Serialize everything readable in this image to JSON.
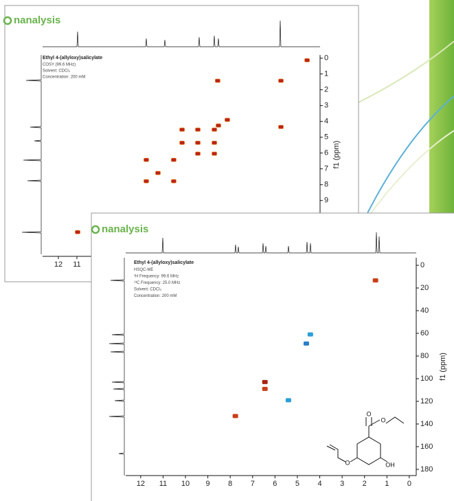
{
  "chart_data": [
    {
      "type": "scatter",
      "brand": "nanalysis",
      "title": "Ethyl 4-(allyloxy)salicylate",
      "info": [
        "COSY (99.6 MHz)",
        "Solvent: CDCl₃",
        "Concentration: 200 mM"
      ],
      "y_label": "f1 (ppm)",
      "x": [
        -1.41,
        3.41,
        0.0,
        0.0,
        2.89,
        3.37,
        5.33,
        4.48,
        5.33,
        4.48,
        3.59,
        3.59,
        3.59,
        4.48,
        7.26,
        5.78,
        6.63,
        7.26,
        5.78,
        10.96
      ],
      "values": [
        0.13,
        1.43,
        1.43,
        4.35,
        3.9,
        4.26,
        4.52,
        4.52,
        5.35,
        5.35,
        5.35,
        4.52,
        6.04,
        6.04,
        6.43,
        6.43,
        7.26,
        7.78,
        7.78,
        11.0
      ],
      "color": "#b8231a",
      "xlim": [
        12.85,
        -2.11
      ],
      "ylim": [
        -0.2,
        12.4
      ],
      "xticks": [
        12,
        11
      ],
      "yticks": [
        0,
        1,
        2,
        3,
        4,
        5,
        6,
        7,
        8,
        9
      ]
    },
    {
      "type": "scatter",
      "brand": "nanalysis",
      "title": "Ethyl 4-(allyloxy)salicylate",
      "info": [
        "HSQC-ME",
        "¹H Frequency: 99.6 MHz",
        "¹³C Frequency: 25.0 MHz",
        "Solvent: CDCl₃",
        "Concentration: 200 mM"
      ],
      "y_label": "f1 (ppm)",
      "structure_labels": [
        "O",
        "O",
        "O",
        "OH"
      ],
      "x": [
        1.51,
        4.42,
        4.6,
        6.45,
        6.45,
        5.4,
        7.77
      ],
      "values": [
        13.3,
        61,
        69,
        103,
        109,
        119,
        133
      ],
      "colors": [
        "#c8401a",
        "#2a9fd6",
        "#2a7fc6",
        "#a82410",
        "#c8401a",
        "#2a9fd6",
        "#c8401a"
      ],
      "xlim": [
        12.67,
        -0.31
      ],
      "ylim": [
        -6.7,
        185.5
      ],
      "xticks": [
        12,
        11,
        10,
        9,
        8,
        7,
        6,
        5,
        4,
        3,
        2,
        1,
        0
      ],
      "yticks": [
        0,
        20,
        40,
        60,
        80,
        100,
        120,
        140,
        160,
        180
      ]
    }
  ]
}
